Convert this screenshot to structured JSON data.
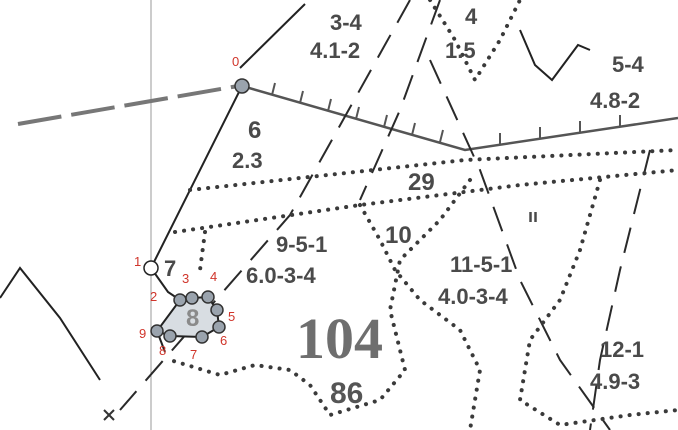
{
  "parcels": [
    {
      "id": "p-3-4",
      "line1": "3-4",
      "line2": "4.1-2"
    },
    {
      "id": "p-4",
      "line1": "4",
      "line2": "1.5"
    },
    {
      "id": "p-5-4",
      "line1": "5-4",
      "line2": "4.8-2"
    },
    {
      "id": "p-6",
      "line1": "6",
      "line2": "2.3"
    },
    {
      "id": "p-29",
      "line1": "29"
    },
    {
      "id": "p-10",
      "line1": "10"
    },
    {
      "id": "p-9-5-1",
      "line1": "9-5-1",
      "line2": "6.0-3-4"
    },
    {
      "id": "p-11-5-1",
      "line1": "11-5-1",
      "line2": "4.0-3-4"
    },
    {
      "id": "p-12-1",
      "line1": "12-1",
      "line2": "4.9-3"
    },
    {
      "id": "p-7",
      "line1": "7"
    },
    {
      "id": "p-8",
      "line1": "8"
    },
    {
      "id": "p-11-mark",
      "line1": "ıı"
    }
  ],
  "block": {
    "number": "104",
    "sub": "86"
  },
  "vertices": [
    "0",
    "1",
    "2",
    "3",
    "4",
    "5",
    "6",
    "7",
    "8",
    "9"
  ],
  "colors": {
    "vertex_fill": "#9aa3ad",
    "vertex_label": "#d0352b",
    "guide_line": "#9a9a9a"
  }
}
